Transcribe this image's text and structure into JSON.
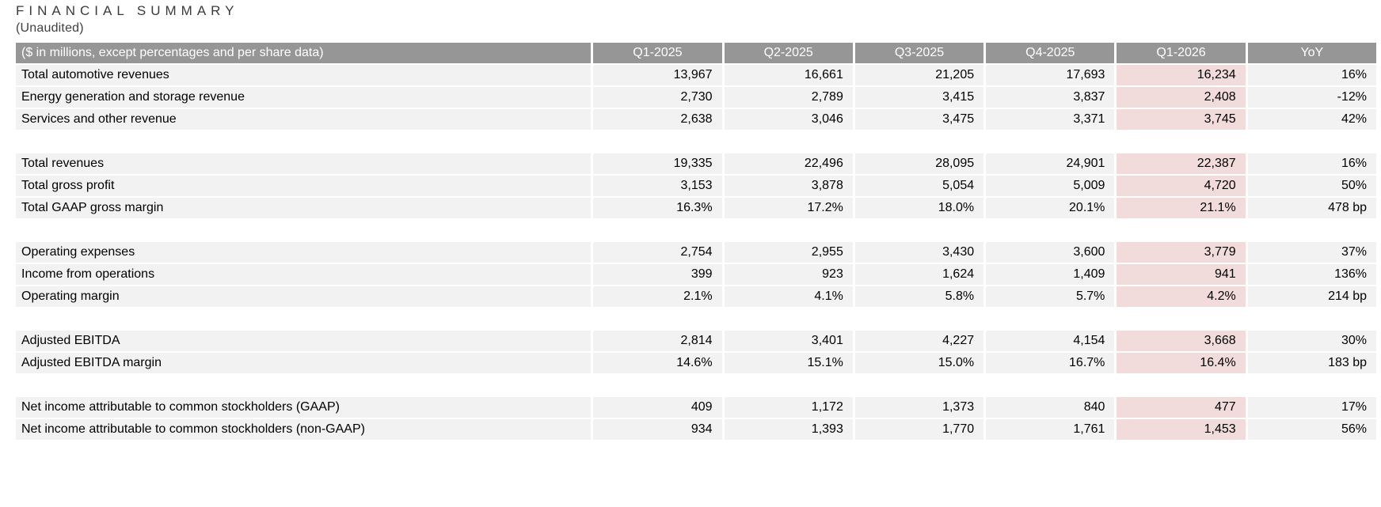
{
  "page": {
    "title": "FINANCIAL SUMMARY",
    "subtitle": "(Unaudited)"
  },
  "colors": {
    "header_bg": "#969696",
    "header_text": "#ffffff",
    "row_bg": "#f2f2f2",
    "highlight_bg": "#f2dcdb",
    "title_text": "#3b3b3b"
  },
  "table": {
    "header": {
      "label": "($ in millions, except percentages and per share data)",
      "columns": [
        "Q1-2025",
        "Q2-2025",
        "Q3-2025",
        "Q4-2025",
        "Q1-2026",
        "YoY"
      ],
      "column_keys": [
        "q1-2025",
        "q2-2025",
        "q3-2025",
        "q4-2025",
        "q1-2026",
        "yoy"
      ],
      "highlight_column": "Q1-2026",
      "highlight_index": 4
    },
    "sections": [
      [
        {
          "label": "Total automotive revenues",
          "values": [
            "13,967",
            "16,661",
            "21,205",
            "17,693",
            "16,234",
            "16%"
          ]
        },
        {
          "label": "Energy generation and storage revenue",
          "values": [
            "2,730",
            "2,789",
            "3,415",
            "3,837",
            "2,408",
            "-12%"
          ]
        },
        {
          "label": "Services and other revenue",
          "values": [
            "2,638",
            "3,046",
            "3,475",
            "3,371",
            "3,745",
            "42%"
          ]
        }
      ],
      [
        {
          "label": "Total revenues",
          "values": [
            "19,335",
            "22,496",
            "28,095",
            "24,901",
            "22,387",
            "16%"
          ]
        },
        {
          "label": "Total gross profit",
          "values": [
            "3,153",
            "3,878",
            "5,054",
            "5,009",
            "4,720",
            "50%"
          ]
        },
        {
          "label": "Total GAAP gross margin",
          "values": [
            "16.3%",
            "17.2%",
            "18.0%",
            "20.1%",
            "21.1%",
            "478 bp"
          ]
        }
      ],
      [
        {
          "label": "Operating expenses",
          "values": [
            "2,754",
            "2,955",
            "3,430",
            "3,600",
            "3,779",
            "37%"
          ]
        },
        {
          "label": "Income from operations",
          "values": [
            "399",
            "923",
            "1,624",
            "1,409",
            "941",
            "136%"
          ]
        },
        {
          "label": "Operating margin",
          "values": [
            "2.1%",
            "4.1%",
            "5.8%",
            "5.7%",
            "4.2%",
            "214 bp"
          ]
        }
      ],
      [
        {
          "label": "Adjusted EBITDA",
          "values": [
            "2,814",
            "3,401",
            "4,227",
            "4,154",
            "3,668",
            "30%"
          ]
        },
        {
          "label": "Adjusted EBITDA margin",
          "values": [
            "14.6%",
            "15.1%",
            "15.0%",
            "16.7%",
            "16.4%",
            "183 bp"
          ]
        }
      ],
      [
        {
          "label": "Net income attributable to common stockholders (GAAP)",
          "values": [
            "409",
            "1,172",
            "1,373",
            "840",
            "477",
            "17%"
          ]
        },
        {
          "label": "Net income attributable to common stockholders (non-GAAP)",
          "values": [
            "934",
            "1,393",
            "1,770",
            "1,761",
            "1,453",
            "56%"
          ]
        }
      ]
    ]
  }
}
